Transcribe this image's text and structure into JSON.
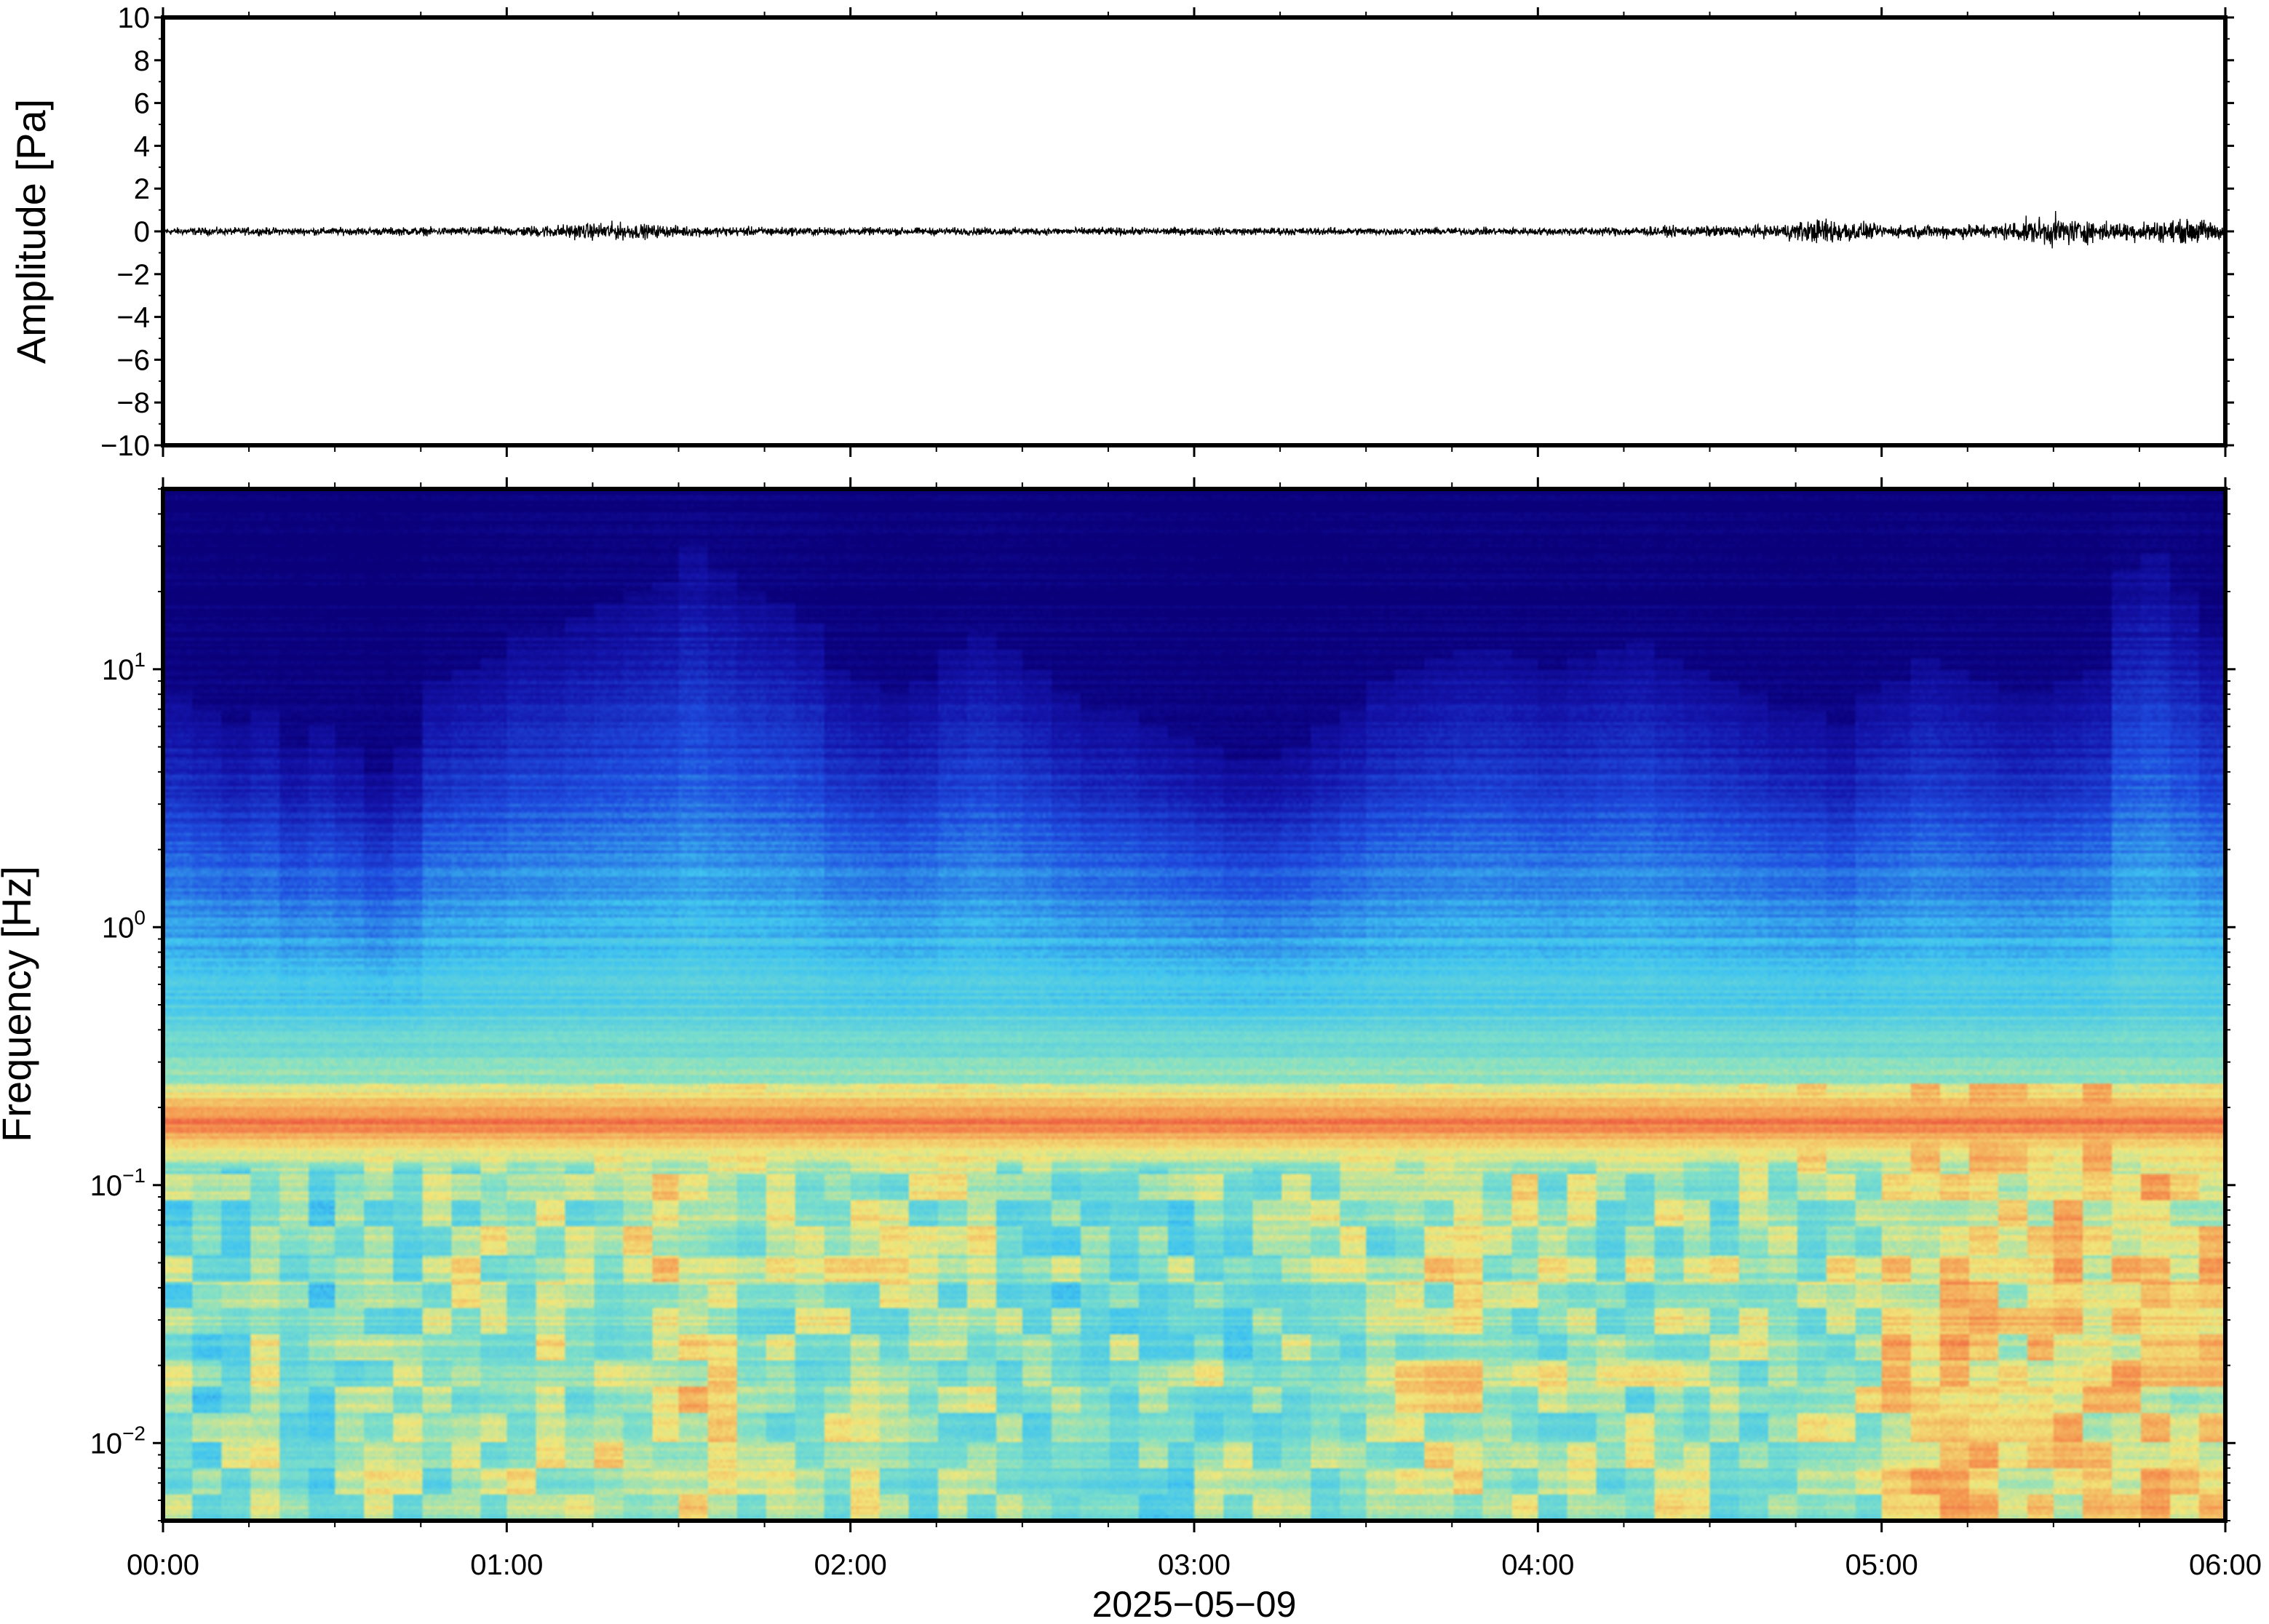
{
  "chart_data": [
    {
      "type": "line",
      "panel": "waveform",
      "title": "",
      "ylabel": "Amplitude [Pa]",
      "ylim": [
        -10,
        10
      ],
      "yticks": [
        10,
        8,
        6,
        4,
        2,
        0,
        -2,
        -4,
        -6,
        -8,
        -10
      ],
      "ytick_labels": [
        "10",
        "8",
        "6",
        "4",
        "2",
        "0",
        "−2",
        "−4",
        "−6",
        "−8",
        "−10"
      ],
      "line_color": "#000000",
      "grid": false,
      "noise_envelope": [
        {
          "time": "00:00",
          "amplitude": 0.25
        },
        {
          "time": "00:30",
          "amplitude": 0.25
        },
        {
          "time": "01:00",
          "amplitude": 0.3
        },
        {
          "time": "01:18",
          "amplitude": 0.6
        },
        {
          "time": "01:30",
          "amplitude": 0.35
        },
        {
          "time": "02:00",
          "amplitude": 0.25
        },
        {
          "time": "03:00",
          "amplitude": 0.25
        },
        {
          "time": "04:00",
          "amplitude": 0.25
        },
        {
          "time": "04:40",
          "amplitude": 0.4
        },
        {
          "time": "04:51",
          "amplitude": 0.9
        },
        {
          "time": "05:00",
          "amplitude": 0.4
        },
        {
          "time": "05:20",
          "amplitude": 0.5
        },
        {
          "time": "05:30",
          "amplitude": 1.0
        },
        {
          "time": "05:40",
          "amplitude": 0.6
        },
        {
          "time": "05:57",
          "amplitude": 0.8
        },
        {
          "time": "06:00",
          "amplitude": 0.4
        }
      ]
    },
    {
      "type": "heatmap",
      "panel": "spectrogram",
      "title": "",
      "ylabel": "Frequency [Hz]",
      "xlabel": "2025−05−09",
      "y_scale": "log",
      "ylim": [
        0.005,
        50
      ],
      "yticks": [
        {
          "value": 10,
          "base": "10",
          "exp": "1"
        },
        {
          "value": 1,
          "base": "10",
          "exp": "0"
        },
        {
          "value": 0.1,
          "base": "10",
          "exp": "−1"
        },
        {
          "value": 0.01,
          "base": "10",
          "exp": "−2"
        }
      ],
      "xlim": [
        "00:00",
        "06:00"
      ],
      "xticks": [
        "00:00",
        "01:00",
        "02:00",
        "03:00",
        "04:00",
        "05:00",
        "06:00"
      ],
      "colormap": "rainbow",
      "colors": {
        "low": "#0a007a",
        "mid_low": "#1f4fe0",
        "mid": "#3fc4f0",
        "mid_high": "#f2e77a",
        "high": "#e8403a"
      },
      "microseism_band_hz": [
        0.14,
        0.22
      ],
      "time_columns": 72,
      "upper_extent_hz": [
        8,
        7,
        6,
        7,
        5,
        6,
        5,
        4,
        5,
        9,
        10,
        11,
        14,
        14,
        16,
        18,
        20,
        22,
        30,
        24,
        20,
        18,
        15,
        10,
        9,
        8,
        9,
        12,
        14,
        12,
        10,
        8,
        7,
        7,
        6,
        5.5,
        5,
        4.5,
        4.5,
        5,
        6,
        7,
        9,
        10,
        11,
        12,
        12,
        11,
        10,
        11,
        12,
        13,
        11,
        10,
        9,
        8,
        7,
        7,
        6,
        8,
        9,
        11,
        10,
        9,
        8,
        8,
        9,
        10,
        24,
        28,
        20,
        14
      ],
      "low_frequency_energy": [
        0.4,
        0.35,
        0.4,
        0.5,
        0.35,
        0.3,
        0.45,
        0.5,
        0.45,
        0.5,
        0.55,
        0.55,
        0.6,
        0.6,
        0.6,
        0.65,
        0.7,
        0.75,
        0.8,
        0.7,
        0.6,
        0.55,
        0.55,
        0.6,
        0.6,
        0.55,
        0.5,
        0.55,
        0.55,
        0.5,
        0.45,
        0.35,
        0.45,
        0.4,
        0.35,
        0.4,
        0.45,
        0.4,
        0.45,
        0.5,
        0.55,
        0.5,
        0.5,
        0.6,
        0.7,
        0.7,
        0.65,
        0.6,
        0.55,
        0.55,
        0.5,
        0.5,
        0.55,
        0.5,
        0.5,
        0.5,
        0.55,
        0.6,
        0.55,
        0.6,
        0.9,
        0.92,
        0.95,
        0.9,
        0.85,
        0.8,
        0.9,
        0.85,
        0.88,
        0.9,
        0.85,
        0.88
      ]
    }
  ]
}
